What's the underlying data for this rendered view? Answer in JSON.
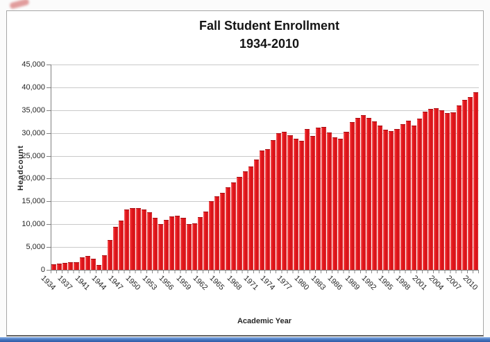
{
  "frame": {
    "panel_background": "#ffffff",
    "panel_border_color": "#a6a6a6",
    "bottom_strip_color_top": "#8db3e8",
    "bottom_strip_color_bottom": "#2e5ba6",
    "accent_red": "#e2151b"
  },
  "chart_data": {
    "type": "bar",
    "title": "Fall Student Enrollment",
    "subtitle": "1934-2010",
    "xlabel": "Academic Year",
    "ylabel": "Headcount",
    "ylim": [
      0,
      45000
    ],
    "ytick_step": 5000,
    "ytick_labels": [
      "0",
      "5,000",
      "10,000",
      "15,000",
      "20,000",
      "25,000",
      "30,000",
      "35,000",
      "40,000",
      "45,000"
    ],
    "grid": true,
    "legend": "none",
    "bar_color": "#e2151b",
    "x_label_every": 3,
    "x_label_rotation_deg": 45,
    "x_tick_labels_shown": [
      "1934",
      "1937",
      "1941",
      "1944",
      "1947",
      "1950",
      "1953",
      "1956",
      "1959",
      "1962",
      "1965",
      "1968",
      "1971",
      "1974",
      "1977",
      "1980",
      "1983",
      "1986",
      "1989",
      "1992",
      "1995",
      "1998",
      "2001",
      "2004",
      "2007",
      "2010"
    ],
    "categories": [
      1934,
      1935,
      1936,
      1937,
      1938,
      1940,
      1941,
      1942,
      1943,
      1944,
      1945,
      1946,
      1947,
      1948,
      1949,
      1950,
      1951,
      1952,
      1953,
      1954,
      1955,
      1956,
      1957,
      1958,
      1959,
      1960,
      1961,
      1962,
      1963,
      1964,
      1965,
      1966,
      1967,
      1968,
      1969,
      1970,
      1971,
      1972,
      1973,
      1974,
      1975,
      1976,
      1977,
      1978,
      1979,
      1980,
      1981,
      1982,
      1983,
      1984,
      1985,
      1986,
      1987,
      1988,
      1989,
      1990,
      1991,
      1992,
      1993,
      1994,
      1995,
      1996,
      1997,
      1998,
      1999,
      2000,
      2001,
      2002,
      2003,
      2004,
      2005,
      2006,
      2007,
      2008,
      2009,
      2010
    ],
    "values": [
      1200,
      1350,
      1450,
      1600,
      1750,
      2800,
      3000,
      2400,
      1100,
      3200,
      6500,
      9500,
      10800,
      13300,
      13500,
      13600,
      13300,
      12600,
      11400,
      10100,
      11000,
      11700,
      11900,
      11400,
      10100,
      10200,
      11500,
      12800,
      15000,
      16100,
      16900,
      18100,
      19100,
      20400,
      21600,
      22700,
      24200,
      26200,
      26500,
      28400,
      30000,
      30200,
      29500,
      28800,
      28300,
      30900,
      29400,
      31200,
      31300,
      30100,
      29000,
      28800,
      30200,
      32400,
      33300,
      33900,
      33300,
      32500,
      31700,
      30700,
      30400,
      30800,
      31900,
      32700,
      31600,
      33200,
      34700,
      35200,
      35400,
      35000,
      34300,
      34500,
      36100,
      37200,
      37900,
      38900
    ]
  }
}
